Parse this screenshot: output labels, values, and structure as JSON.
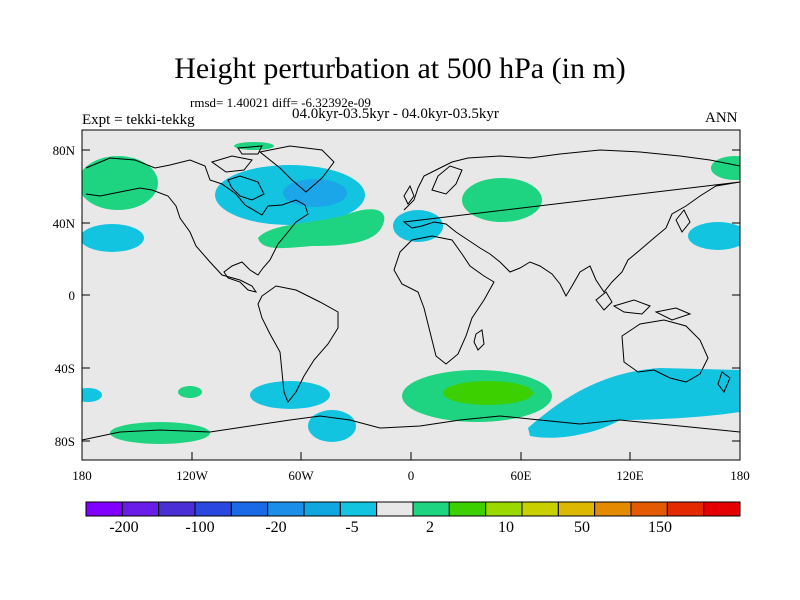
{
  "title": "Height perturbation at 500 hPa (in m)",
  "stats_line": "rmsd= 1.40021 diff= -6.32392e-09",
  "period_line": "04.0kyr-03.5kyr - 04.0kyr-03.5kyr",
  "experiment": "Expt = tekki-tekkg",
  "season": "ANN",
  "lat_ticks": [
    "80N",
    "40N",
    "0",
    "40S",
    "80S"
  ],
  "lon_ticks": [
    "180",
    "120W",
    "60W",
    "0",
    "60E",
    "120E",
    "180"
  ],
  "colorbar": {
    "colors": [
      "#7f00ff",
      "#6a1ce8",
      "#4a2ed6",
      "#2a48e0",
      "#1a6ae8",
      "#1a8ee8",
      "#10a6e0",
      "#12c4e0",
      "#e8e8e8",
      "#1ed480",
      "#3cd000",
      "#9ad800",
      "#c8d000",
      "#dcb800",
      "#e48a00",
      "#e45a00",
      "#e42800",
      "#e40000"
    ],
    "labels": [
      "-200",
      "-100",
      "-20",
      "-5",
      "2",
      "10",
      "50",
      "150"
    ]
  },
  "colors": {
    "ocean_bg": "#e8e8e8",
    "cyan": "#12c4e0",
    "mid_blue": "#1aa6e8",
    "green": "#1ed480",
    "light_green": "#3cd000"
  }
}
